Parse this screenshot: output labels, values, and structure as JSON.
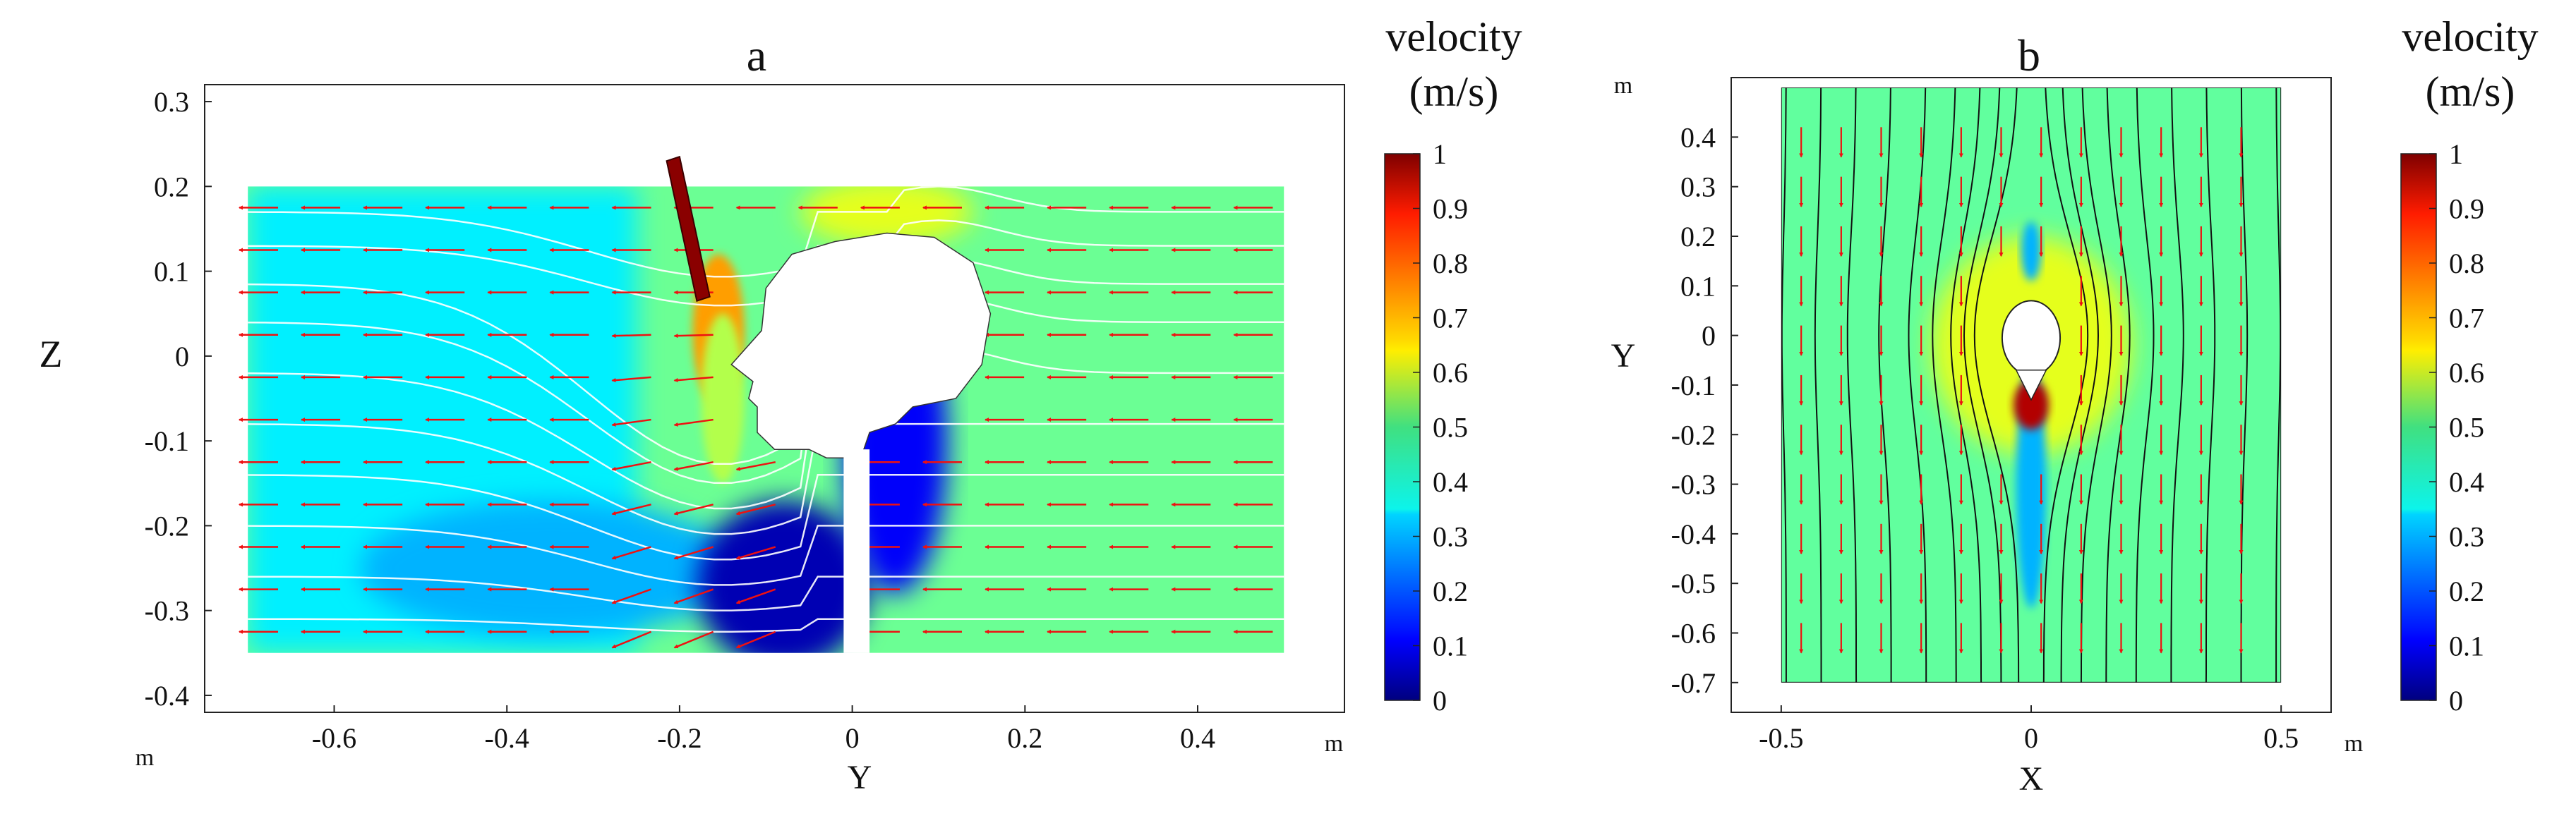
{
  "chart_data": [
    {
      "type": "heatmap",
      "panel_label": "a",
      "title": "a",
      "xlabel": "Y",
      "ylabel": "Z",
      "x_unit": "m",
      "y_unit": "m",
      "xlim": [
        -0.75,
        0.57
      ],
      "ylim": [
        -0.42,
        0.32
      ],
      "domain": {
        "x": [
          -0.7,
          0.5
        ],
        "y": [
          -0.35,
          0.2
        ]
      },
      "xticks": [
        -0.6,
        -0.4,
        -0.2,
        0,
        0.2,
        0.4
      ],
      "xtick_labels": [
        "-0.6",
        "-0.4",
        "-0.2",
        "0",
        "0.2",
        "0.4"
      ],
      "yticks": [
        0.3,
        0.2,
        0.1,
        0,
        -0.1,
        -0.2,
        -0.3,
        -0.4
      ],
      "ytick_labels": [
        "0.3",
        "0.2",
        "0.1",
        "0",
        "-0.1",
        "-0.2",
        "-0.3",
        "-0.4"
      ],
      "field": "velocity magnitude (m/s)",
      "description_values": {
        "background_velocity": 0.48,
        "upstream_wake_velocity": 0.3,
        "jet_peak_velocity": 0.72,
        "stagnant_region_velocity": 0.05
      },
      "colorbar": {
        "title": "velocity",
        "unit": "(m/s)",
        "range": [
          0,
          1
        ],
        "ticks": [
          1,
          0.9,
          0.8,
          0.7,
          0.6,
          0.5,
          0.4,
          0.3,
          0.2,
          0.1,
          0
        ],
        "tick_labels": [
          "1",
          "0.9",
          "0.8",
          "0.7",
          "0.6",
          "0.5",
          "0.4",
          "0.3",
          "0.2",
          "0.1",
          "0"
        ]
      }
    },
    {
      "type": "heatmap",
      "panel_label": "b",
      "title": "b",
      "xlabel": "X",
      "ylabel": "Y",
      "x_unit": "m",
      "y_unit": "m",
      "xlim": [
        -0.6,
        0.6
      ],
      "ylim": [
        -0.76,
        0.52
      ],
      "domain": {
        "x": [
          -0.5,
          0.5
        ],
        "y": [
          -0.7,
          0.5
        ]
      },
      "xticks": [
        -0.5,
        0,
        0.5
      ],
      "xtick_labels": [
        "-0.5",
        "0",
        "0.5"
      ],
      "yticks": [
        0.4,
        0.3,
        0.2,
        0.1,
        0,
        -0.1,
        -0.2,
        -0.3,
        -0.4,
        -0.5,
        -0.6,
        -0.7
      ],
      "ytick_labels": [
        "0.4",
        "0.3",
        "0.2",
        "0.1",
        "0",
        "-0.1",
        "-0.2",
        "-0.3",
        "-0.4",
        "-0.5",
        "-0.6",
        "-0.7"
      ],
      "field": "velocity magnitude (m/s)",
      "description_values": {
        "background_velocity": 0.47,
        "side_acceleration_velocity": 0.6,
        "tip_peak_velocity": 0.95
      },
      "colorbar": {
        "title": "velocity",
        "unit": "(m/s)",
        "range": [
          0,
          1
        ],
        "ticks": [
          1,
          0.9,
          0.8,
          0.7,
          0.6,
          0.5,
          0.4,
          0.3,
          0.2,
          0.1,
          0
        ],
        "tick_labels": [
          "1",
          "0.9",
          "0.8",
          "0.7",
          "0.6",
          "0.5",
          "0.4",
          "0.3",
          "0.2",
          "0.1",
          "0"
        ]
      }
    }
  ]
}
